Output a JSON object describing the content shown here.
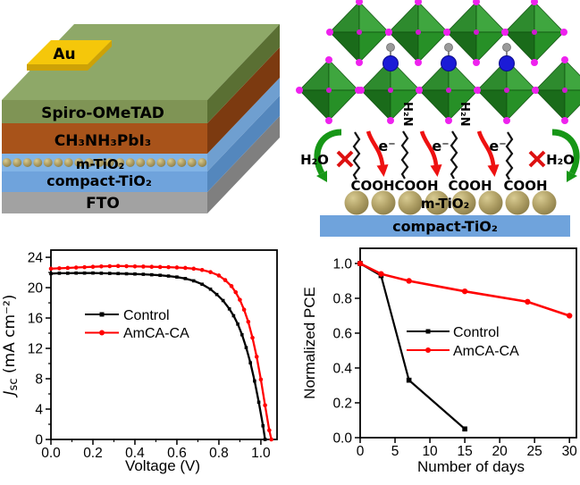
{
  "colors": {
    "series_control": "#000000",
    "series_treated": "#ff0000",
    "au": "#f5c70a",
    "au_side": "#cda206",
    "spiro_top": "#8ea868",
    "spiro_front": "#7f9455",
    "spiro_side": "#5a6f33",
    "perov_front": "#a8531a",
    "perov_side": "#7c3a10",
    "mtio2_bg": "#82b4e6",
    "mtio2_side": "#6f9fd0",
    "sphere": "#b0a066",
    "ctio2": "#6fa3dc",
    "ctio2_side": "#5487bd",
    "fto": "#a2a2a2",
    "fto_side": "#7f7f7f",
    "octa_dark": "#1a6b1a",
    "octa_mid": "#2e8b2e",
    "octa_mid2": "#279027",
    "octa_light": "#3fa63f",
    "iodide": "#ee22ee",
    "nitrogen": "#1b1bd6",
    "hydrogen": "#9a9a9a",
    "chain": "#111111",
    "electron_arrow": "#ee1111",
    "water_arrow": "#169616",
    "cross": "#dd1111"
  },
  "panel_device": {
    "layers": [
      {
        "id": "au",
        "label": "Au"
      },
      {
        "id": "spiro",
        "label": "Spiro-OMeTAD"
      },
      {
        "id": "perovskite",
        "label": "CH₃NH₃PbI₃"
      },
      {
        "id": "m_tio2",
        "label": "m-TiO₂"
      },
      {
        "id": "compact_tio2",
        "label": "compact-TiO₂"
      },
      {
        "id": "fto",
        "label": "FTO"
      }
    ]
  },
  "panel_mechanism": {
    "amine_label": "H₂N",
    "electron_label": "e⁻",
    "water_label": "H₂O",
    "cooh_label": "COOH",
    "mtio2_label": "m-TiO₂",
    "ctio2_label": "compact-TiO₂"
  },
  "chart_data": [
    {
      "type": "line",
      "title": "",
      "xlabel": "Voltage (V)",
      "ylabel_italic": "J",
      "ylabel_sub": "sc",
      "ylabel_rest": " (mA cm⁻²)",
      "xlim": [
        0,
        1.077
      ],
      "ylim": [
        0,
        24.95
      ],
      "grid": false,
      "legend_position": "center-left",
      "xticks": {
        "values": [
          0,
          0.2,
          0.4,
          0.6,
          0.8,
          1.0
        ],
        "labels": [
          "0.0",
          "0.2",
          "0.4",
          "0.6",
          "0.8",
          "1.0"
        ],
        "minor": [
          0.1,
          0.3,
          0.5,
          0.7,
          0.9
        ]
      },
      "yticks": {
        "values": [
          0,
          4,
          8,
          12,
          16,
          20,
          24
        ],
        "labels": [
          "0",
          "4",
          "8",
          "12",
          "16",
          "20",
          "24"
        ],
        "minor": [
          2,
          6,
          10,
          14,
          18,
          22
        ]
      },
      "series": [
        {
          "name": "Control",
          "color": "#000000",
          "marker": "square",
          "msize": 3.6,
          "width": 2.3,
          "points": [
            [
              0,
              21.85
            ],
            [
              0.04,
              21.9
            ],
            [
              0.08,
              21.9
            ],
            [
              0.12,
              21.92
            ],
            [
              0.16,
              21.92
            ],
            [
              0.2,
              21.93
            ],
            [
              0.24,
              21.9
            ],
            [
              0.28,
              21.88
            ],
            [
              0.32,
              21.86
            ],
            [
              0.36,
              21.83
            ],
            [
              0.4,
              21.8
            ],
            [
              0.44,
              21.76
            ],
            [
              0.48,
              21.7
            ],
            [
              0.52,
              21.63
            ],
            [
              0.56,
              21.53
            ],
            [
              0.6,
              21.4
            ],
            [
              0.64,
              21.2
            ],
            [
              0.68,
              20.9
            ],
            [
              0.72,
              20.45
            ],
            [
              0.76,
              19.8
            ],
            [
              0.79,
              19.1
            ],
            [
              0.82,
              18.3
            ],
            [
              0.85,
              17.2
            ],
            [
              0.87,
              16.3
            ],
            [
              0.89,
              15.2
            ],
            [
              0.91,
              13.8
            ],
            [
              0.93,
              12.1
            ],
            [
              0.95,
              10.1
            ],
            [
              0.97,
              7.7
            ],
            [
              0.99,
              4.9
            ],
            [
              1.01,
              1.8
            ],
            [
              1.02,
              0
            ]
          ]
        },
        {
          "name": "AmCA-CA",
          "color": "#ff0000",
          "marker": "circle",
          "msize": 4.6,
          "width": 2.3,
          "points": [
            [
              0,
              22.5
            ],
            [
              0.04,
              22.55
            ],
            [
              0.08,
              22.6
            ],
            [
              0.12,
              22.65
            ],
            [
              0.16,
              22.7
            ],
            [
              0.2,
              22.75
            ],
            [
              0.24,
              22.8
            ],
            [
              0.28,
              22.83
            ],
            [
              0.32,
              22.85
            ],
            [
              0.36,
              22.83
            ],
            [
              0.4,
              22.8
            ],
            [
              0.44,
              22.78
            ],
            [
              0.48,
              22.75
            ],
            [
              0.52,
              22.72
            ],
            [
              0.56,
              22.7
            ],
            [
              0.6,
              22.66
            ],
            [
              0.64,
              22.6
            ],
            [
              0.68,
              22.5
            ],
            [
              0.72,
              22.33
            ],
            [
              0.76,
              22.05
            ],
            [
              0.8,
              21.6
            ],
            [
              0.83,
              21.0
            ],
            [
              0.86,
              20.2
            ],
            [
              0.88,
              19.4
            ],
            [
              0.9,
              18.4
            ],
            [
              0.92,
              17.1
            ],
            [
              0.94,
              15.5
            ],
            [
              0.96,
              13.4
            ],
            [
              0.98,
              10.9
            ],
            [
              1.0,
              7.9
            ],
            [
              1.02,
              4.5
            ],
            [
              1.04,
              1.2
            ],
            [
              1.05,
              0
            ]
          ]
        }
      ]
    },
    {
      "type": "line",
      "title": "",
      "xlabel": "Number of days",
      "ylabel": "Normalized PCE",
      "xlim": [
        0,
        31
      ],
      "ylim": [
        0,
        1.087
      ],
      "grid": false,
      "legend_position": "center-right",
      "xticks": {
        "values": [
          0,
          5,
          10,
          15,
          20,
          25,
          30
        ],
        "labels": [
          "0",
          "5",
          "10",
          "15",
          "20",
          "25",
          "30"
        ],
        "minor": []
      },
      "yticks": {
        "values": [
          0,
          0.2,
          0.4,
          0.6,
          0.8,
          1.0
        ],
        "labels": [
          "0.0",
          "0.2",
          "0.4",
          "0.6",
          "0.8",
          "1.0"
        ],
        "minor": []
      },
      "series": [
        {
          "name": "Control",
          "color": "#000000",
          "marker": "square",
          "msize": 5.6,
          "width": 2.2,
          "points": [
            [
              0,
              1.0
            ],
            [
              3,
              0.93
            ],
            [
              7,
              0.33
            ],
            [
              15,
              0.05
            ]
          ]
        },
        {
          "name": "AmCA-CA",
          "color": "#ff0000",
          "marker": "circle",
          "msize": 6.4,
          "width": 2.6,
          "points": [
            [
              0,
              1.0
            ],
            [
              3,
              0.94
            ],
            [
              7,
              0.9
            ],
            [
              15,
              0.84
            ],
            [
              24,
              0.78
            ],
            [
              30,
              0.7
            ]
          ]
        }
      ]
    }
  ]
}
